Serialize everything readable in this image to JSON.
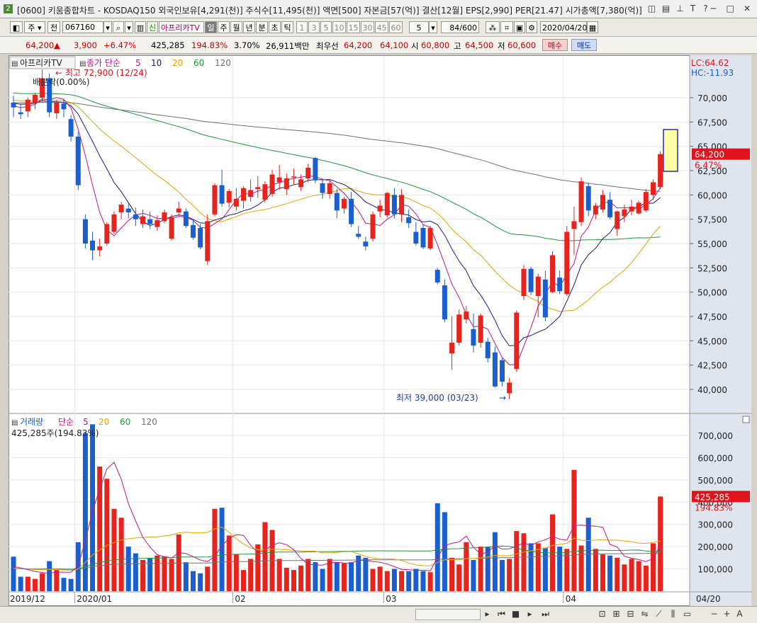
{
  "window": {
    "badge": "2",
    "title": "[0600] 키움종합차트 - KOSDAQ150 외국인보유[4,291(천)] 주식수[11,495(천)] 액면[500] 자본금[57(억)] 결산[12월] EPS[2,990] PER[21.47] 시가총액[7,380(억)]"
  },
  "toolbar1": {
    "period_main": "주",
    "prev_label": "전",
    "code": "067160",
    "credit_flag": "신",
    "stock_name": "아프리카TV",
    "period_tabs": [
      "일",
      "주",
      "월",
      "년",
      "분",
      "초",
      "틱"
    ],
    "minute_options": [
      "1",
      "3",
      "5",
      "10",
      "15",
      "30",
      "45",
      "60"
    ],
    "unit_value": "5",
    "count": "84/600",
    "date": "2020/04/20"
  },
  "quote": {
    "price": "64,200",
    "arrow": "▲",
    "change": "3,900",
    "change_pct": "+6.47%",
    "volume": "425,285",
    "volume_ratio": "194.83%",
    "turnover": "3.70%",
    "amount": "26,911백만",
    "best_label": "최우선",
    "ask": "64,200",
    "bid": "64,100",
    "open_label": "시",
    "open": "60,800",
    "high_label": "고",
    "high": "64,500",
    "low_label": "저",
    "low": "60,600",
    "buy_label": "매수",
    "sell_label": "매도"
  },
  "price_panel": {
    "stock_tag": "아프리카TV",
    "ma_label": "종가 단순",
    "periods": [
      "5",
      "10",
      "20",
      "60",
      "120"
    ],
    "high_marker": "최고 72,900 (12/24)",
    "allocation": "배분락(0.00%)",
    "low_marker": "최저 39,000 (03/23)",
    "lc": "LC:64.62",
    "hc": "HC:-11.93",
    "last_price": "64,200",
    "last_pct": "6.47%"
  },
  "volume_panel": {
    "label": "거래량",
    "ma_label": "단순",
    "periods": [
      "5",
      "20",
      "60",
      "120"
    ],
    "info": "425,285주(194.83%)",
    "last_volume": "425,285",
    "last_pct": "194.83%"
  },
  "x_axis_labels": [
    "2019/12",
    "2020/01",
    "02",
    "03",
    "04",
    "04/20"
  ],
  "colors": {
    "up": "#e8221c",
    "down": "#1a5fd0",
    "ma5": "#c8148c",
    "ma10": "#1c1c7c",
    "ma20": "#e8a400",
    "ma60": "#1a9a3a",
    "ma120": "#707070"
  },
  "chart_data": [
    {
      "type": "candlestick",
      "ylim": [
        38000,
        73000
      ],
      "yticks": [
        40000,
        42500,
        45000,
        47500,
        50000,
        52500,
        55000,
        57500,
        60000,
        62500,
        65000,
        67500,
        70000
      ],
      "candles": [
        [
          69500,
          70200,
          68000,
          69000
        ],
        [
          68500,
          69400,
          67800,
          68300
        ],
        [
          68600,
          70000,
          68000,
          69800
        ],
        [
          69500,
          70500,
          68800,
          70300
        ],
        [
          70000,
          72900,
          69500,
          72000
        ],
        [
          72000,
          72500,
          68000,
          68500
        ],
        [
          68400,
          69800,
          67800,
          69500
        ],
        [
          69400,
          69900,
          68000,
          68800
        ],
        [
          67800,
          68200,
          65500,
          66000
        ],
        [
          66000,
          66500,
          60500,
          61000
        ],
        [
          57500,
          58000,
          54500,
          55000
        ],
        [
          55300,
          56200,
          53300,
          54300
        ],
        [
          54300,
          55500,
          53700,
          54700
        ],
        [
          55000,
          57200,
          54800,
          57000
        ],
        [
          56200,
          58300,
          56000,
          58000
        ],
        [
          58200,
          59300,
          57500,
          59000
        ],
        [
          58600,
          59200,
          57600,
          58200
        ],
        [
          58000,
          58700,
          56800,
          57500
        ],
        [
          57000,
          58500,
          56600,
          57800
        ],
        [
          57500,
          58300,
          56500,
          57000
        ],
        [
          56700,
          57900,
          56300,
          57400
        ],
        [
          57300,
          58500,
          57100,
          58200
        ],
        [
          55500,
          58000,
          55300,
          57700
        ],
        [
          58200,
          59300,
          57800,
          58600
        ],
        [
          58300,
          58600,
          56600,
          56800
        ],
        [
          56900,
          57500,
          55400,
          55600
        ],
        [
          56600,
          57000,
          54400,
          54600
        ],
        [
          53200,
          58000,
          52800,
          57300
        ],
        [
          58000,
          61200,
          57800,
          61000
        ],
        [
          61000,
          62600,
          58800,
          59100
        ],
        [
          59200,
          60600,
          58700,
          60400
        ],
        [
          58800,
          60700,
          58400,
          59600
        ],
        [
          59400,
          60900,
          58600,
          60700
        ],
        [
          59800,
          61600,
          59300,
          60500
        ],
        [
          60600,
          61900,
          59700,
          60800
        ],
        [
          59500,
          61400,
          59200,
          61100
        ],
        [
          60100,
          62600,
          59800,
          62100
        ],
        [
          61300,
          63100,
          60500,
          61800
        ],
        [
          60600,
          62200,
          60000,
          61700
        ],
        [
          61800,
          62700,
          61100,
          61900
        ],
        [
          60800,
          62100,
          60400,
          61600
        ],
        [
          61700,
          63200,
          61300,
          62800
        ],
        [
          63800,
          63900,
          61200,
          61500
        ],
        [
          61200,
          61700,
          59600,
          60200
        ],
        [
          60100,
          61600,
          59600,
          61200
        ],
        [
          60200,
          60600,
          57600,
          58400
        ],
        [
          58600,
          59800,
          58100,
          59600
        ],
        [
          59600,
          60300,
          56700,
          57000
        ],
        [
          56000,
          56800,
          55500,
          55700
        ],
        [
          55200,
          55700,
          54300,
          54700
        ],
        [
          55500,
          58300,
          55200,
          58000
        ],
        [
          58300,
          59500,
          57700,
          58900
        ],
        [
          57900,
          60300,
          57700,
          60200
        ],
        [
          60000,
          60700,
          57600,
          58000
        ],
        [
          58000,
          60600,
          57200,
          60000
        ],
        [
          57700,
          58500,
          56600,
          57100
        ],
        [
          56200,
          57200,
          54800,
          55000
        ],
        [
          56600,
          57000,
          54400,
          54600
        ],
        [
          54500,
          56800,
          54300,
          56600
        ],
        [
          52300,
          52500,
          50800,
          51000
        ],
        [
          50700,
          51300,
          46900,
          47200
        ],
        [
          43700,
          47500,
          42000,
          44800
        ],
        [
          44800,
          48200,
          44500,
          47700
        ],
        [
          47200,
          48600,
          46800,
          48000
        ],
        [
          46200,
          47800,
          43800,
          44500
        ],
        [
          44800,
          47800,
          44300,
          47600
        ],
        [
          44900,
          45300,
          42800,
          43200
        ],
        [
          43800,
          44400,
          40200,
          40300
        ],
        [
          43000,
          43200,
          40300,
          40800
        ],
        [
          39600,
          41200,
          39000,
          40700
        ],
        [
          42100,
          48100,
          41800,
          47900
        ],
        [
          49600,
          52800,
          49200,
          52400
        ],
        [
          52400,
          52600,
          49700,
          50000
        ],
        [
          49600,
          51900,
          47400,
          51600
        ],
        [
          51300,
          52200,
          47000,
          47400
        ],
        [
          50000,
          54200,
          49900,
          53800
        ],
        [
          51500,
          52200,
          49800,
          50100
        ],
        [
          49800,
          56800,
          49600,
          56200
        ],
        [
          56500,
          58800,
          53800,
          57300
        ],
        [
          57200,
          61800,
          56800,
          61400
        ],
        [
          60900,
          61300,
          57800,
          58400
        ],
        [
          58000,
          59200,
          57500,
          58900
        ],
        [
          58500,
          60500,
          58200,
          60000
        ],
        [
          59500,
          60300,
          57500,
          57700
        ],
        [
          56500,
          58400,
          55800,
          58300
        ],
        [
          57800,
          59000,
          57200,
          58500
        ],
        [
          58300,
          59500,
          57900,
          58800
        ],
        [
          58100,
          59400,
          58000,
          59200
        ],
        [
          58400,
          60600,
          58200,
          60300
        ],
        [
          60000,
          61600,
          59500,
          61300
        ],
        [
          60800,
          64500,
          60600,
          64200
        ]
      ]
    },
    {
      "type": "bar",
      "ylim": [
        0,
        780000
      ],
      "yticks": [
        100000,
        200000,
        300000,
        400000,
        500000,
        600000,
        700000
      ],
      "values": [
        155000,
        65000,
        65000,
        55000,
        80000,
        135000,
        95000,
        60000,
        55000,
        220000,
        710000,
        750000,
        560000,
        505000,
        370000,
        330000,
        200000,
        170000,
        140000,
        150000,
        160000,
        155000,
        145000,
        255000,
        130000,
        90000,
        80000,
        110000,
        370000,
        375000,
        250000,
        165000,
        95000,
        145000,
        210000,
        310000,
        275000,
        145000,
        105000,
        95000,
        115000,
        145000,
        130000,
        100000,
        145000,
        130000,
        125000,
        130000,
        160000,
        150000,
        100000,
        110000,
        90000,
        100000,
        90000,
        90000,
        100000,
        90000,
        85000,
        395000,
        355000,
        150000,
        120000,
        220000,
        140000,
        200000,
        200000,
        265000,
        140000,
        145000,
        270000,
        260000,
        215000,
        215000,
        195000,
        345000,
        200000,
        190000,
        545000,
        205000,
        330000,
        190000,
        165000,
        160000,
        150000,
        120000,
        145000,
        135000,
        115000,
        215000,
        425285
      ]
    }
  ]
}
